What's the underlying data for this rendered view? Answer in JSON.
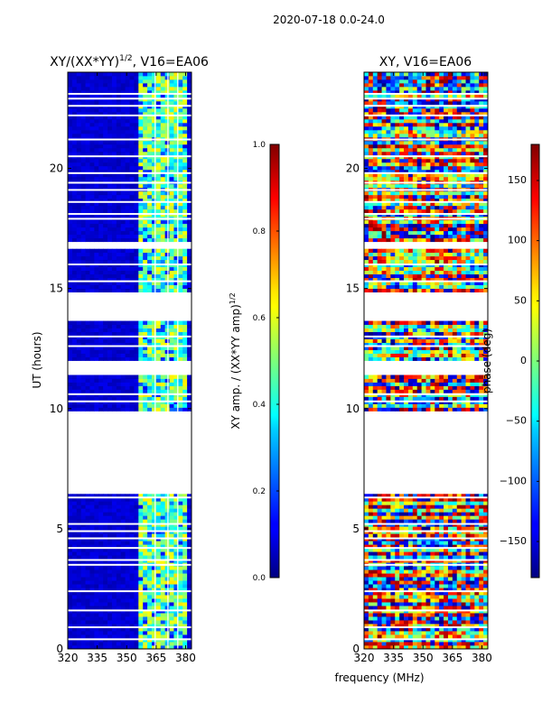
{
  "figure": {
    "suptitle": "2020-07-18 0.0-24.0",
    "shared_xlabel": "frequency (MHz)"
  },
  "chart_data": [
    {
      "type": "heatmap",
      "name": "amp-ratio-panel",
      "title": "XY/(XX*YY)",
      "title_exp": "1/2",
      "title_suffix": ", V16=EA06",
      "ylabel": "UT (hours)",
      "xlabel": "",
      "xlim": [
        320,
        383
      ],
      "ylim": [
        0,
        24
      ],
      "x_ticks": [
        320,
        335,
        350,
        365,
        380
      ],
      "x_tick_labels": [
        "320",
        "335",
        "350",
        "365",
        "380"
      ],
      "y_ticks": [
        0,
        5,
        10,
        15,
        20
      ],
      "y_tick_labels": [
        "0",
        "5",
        "10",
        "15",
        "20"
      ],
      "colormap": "jet",
      "colorbar": {
        "label": "XY amp. / (XX*YY amp)",
        "label_exp": "1/2",
        "range": [
          0.0,
          1.0
        ],
        "ticks": [
          0.0,
          0.2,
          0.4,
          0.6,
          0.8,
          1.0
        ],
        "tick_labels": [
          "0.0",
          "0.2",
          "0.4",
          "0.6",
          "0.8",
          "1.0"
        ]
      }
    },
    {
      "type": "heatmap",
      "name": "phase-panel",
      "title": "XY, V16=EA06",
      "ylabel": "",
      "xlabel": "frequency (MHz)",
      "xlim": [
        320,
        383
      ],
      "ylim": [
        0,
        24
      ],
      "x_ticks": [
        320,
        335,
        350,
        365,
        380
      ],
      "x_tick_labels": [
        "320",
        "335",
        "350",
        "365",
        "380"
      ],
      "y_ticks": [
        0,
        5,
        10,
        15,
        20
      ],
      "y_tick_labels": [
        "0",
        "5",
        "10",
        "15",
        "20"
      ],
      "colormap": "jet",
      "colorbar": {
        "label": "phase (deg)",
        "range": [
          -180,
          180
        ],
        "ticks": [
          -150,
          -100,
          -50,
          0,
          50,
          100,
          150
        ],
        "tick_labels": [
          "−150",
          "−100",
          "−50",
          "0",
          "50",
          "100",
          "150"
        ]
      }
    }
  ],
  "data_gaps_hours": [
    [
      6.5,
      9.9
    ],
    [
      11.4,
      12.0
    ],
    [
      13.6,
      14.8
    ],
    [
      16.7,
      17.0
    ]
  ],
  "flagged_rows_hours": [
    0.4,
    0.9,
    1.6,
    2.4,
    3.5,
    3.7,
    4.2,
    4.6,
    4.9,
    5.2,
    6.3,
    6.6,
    10.3,
    10.6,
    12.6,
    13.0,
    15.3,
    16.0,
    17.9,
    18.1,
    18.6,
    19.1,
    19.4,
    19.8,
    20.5,
    21.2,
    22.2,
    22.6,
    22.9,
    23.1
  ],
  "amp_bright_band_mhz": [
    357,
    380
  ]
}
